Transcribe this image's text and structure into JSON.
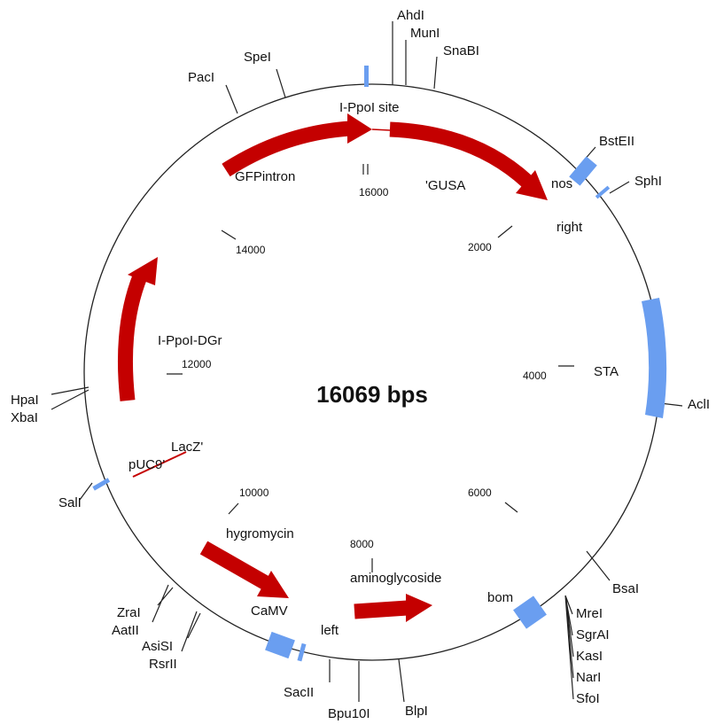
{
  "title": "16069 bps",
  "enzymes": [
    "AhdI",
    "MunI",
    "SnaBI",
    "SpeI",
    "PacI",
    "BstEII",
    "SphI",
    "AclI",
    "BsaI",
    "MreI",
    "SgrAI",
    "KasI",
    "NarI",
    "SfoI",
    "BlpI",
    "Bpu10I",
    "SacII",
    "RsrII",
    "AsiSI",
    "AatII",
    "ZraI",
    "SalI",
    "HpaI",
    "XbaI"
  ],
  "features": [
    "I-PpoI site",
    "GFPintron",
    "'GUSA",
    "nos",
    "right",
    "STA",
    "I-PpoI-DGr",
    "LacZ'",
    "pUC9'",
    "hygromycin",
    "aminoglycoside",
    "CaMV",
    "left",
    "bom"
  ],
  "positions": [
    "16000",
    "2000",
    "14000",
    "12000",
    "10000",
    "8000",
    "6000",
    "4000"
  ]
}
